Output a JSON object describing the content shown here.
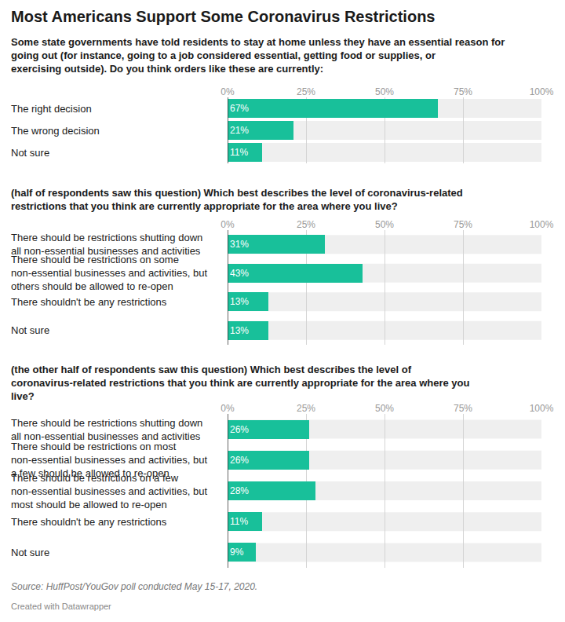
{
  "title": "Most Americans Support Some Coronavirus Restrictions",
  "source": "Source: HuffPost/YouGov poll conducted May 15-17, 2020.",
  "credit": "Created with Datawrapper",
  "chart_data": [
    {
      "type": "bar",
      "orientation": "horizontal",
      "title": "Some state governments have told residents to stay at home unless they have an essential reason for going out (for instance, going to a job considered essential, getting food or supplies, or exercising outside). Do you think orders like these are currently:",
      "categories": [
        "The right decision",
        "The wrong decision",
        "Not sure"
      ],
      "values": [
        67,
        21,
        11
      ],
      "value_labels": [
        "67%",
        "21%",
        "11%"
      ],
      "color": "#18c09a",
      "xlim": [
        0,
        100
      ],
      "xticks": [
        {
          "value": 0,
          "label": "0%"
        },
        {
          "value": 25,
          "label": "25%"
        },
        {
          "value": 50,
          "label": "50%"
        },
        {
          "value": 75,
          "label": "75%"
        },
        {
          "value": 100,
          "label": "100%"
        }
      ],
      "grid": true,
      "data_labels": true
    },
    {
      "type": "bar",
      "orientation": "horizontal",
      "title": "(half of respondents saw this question) Which best describes the level of coronavirus-related restrictions that you think are currently appropriate for the area where you live?",
      "categories": [
        "There should be restrictions shutting down all non-essential businesses and activities",
        "There should be restrictions on some non-essential businesses and activities, but others should be allowed to re-open",
        "There shouldn't be any restrictions",
        "Not sure"
      ],
      "values": [
        31,
        43,
        13,
        13
      ],
      "value_labels": [
        "31%",
        "43%",
        "13%",
        "13%"
      ],
      "color": "#18c09a",
      "xlim": [
        0,
        100
      ],
      "xticks": [
        {
          "value": 0,
          "label": "0%"
        },
        {
          "value": 25,
          "label": "25%"
        },
        {
          "value": 50,
          "label": "50%"
        },
        {
          "value": 75,
          "label": "75%"
        },
        {
          "value": 100,
          "label": "100%"
        }
      ],
      "grid": true,
      "data_labels": true
    },
    {
      "type": "bar",
      "orientation": "horizontal",
      "title": "(the other half of respondents saw this question) Which best describes the level of coronavirus-related restrictions that you think are currently appropriate for the area where you live?",
      "categories": [
        "There should be restrictions shutting down all non-essential businesses and activities",
        "There should be restrictions on most non-essential businesses and activities, but a few should be allowed to re-open",
        "There should be restrictions on a few non-essential businesses and activities, but most should be allowed to re-open",
        "There shouldn't be any restrictions",
        "Not sure"
      ],
      "values": [
        26,
        26,
        28,
        11,
        9
      ],
      "value_labels": [
        "26%",
        "26%",
        "28%",
        "11%",
        "9%"
      ],
      "color": "#18c09a",
      "xlim": [
        0,
        100
      ],
      "xticks": [
        {
          "value": 0,
          "label": "0%"
        },
        {
          "value": 25,
          "label": "25%"
        },
        {
          "value": 50,
          "label": "50%"
        },
        {
          "value": 75,
          "label": "75%"
        },
        {
          "value": 100,
          "label": "100%"
        }
      ],
      "grid": true,
      "data_labels": true
    }
  ]
}
